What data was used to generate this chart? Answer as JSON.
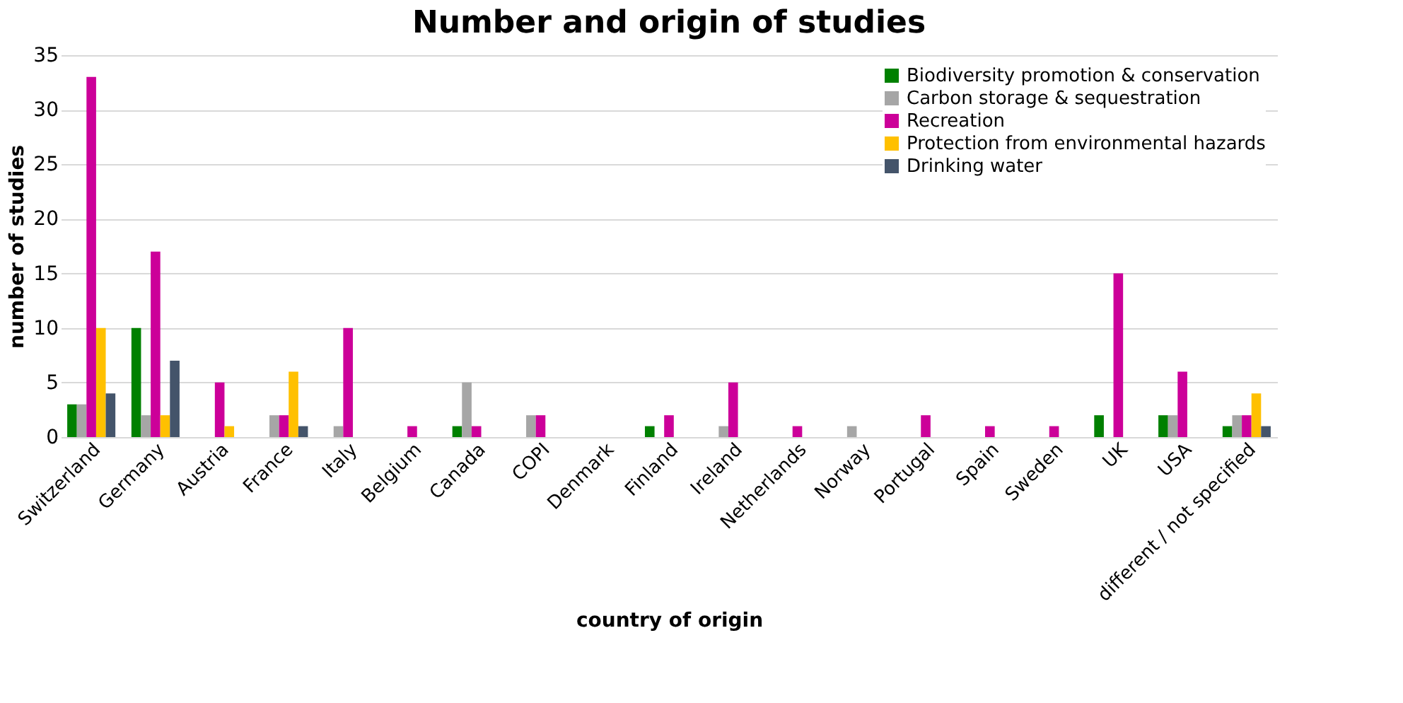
{
  "chart_data": {
    "type": "bar",
    "title": "Number and origin of studies",
    "xlabel": "country of origin",
    "ylabel": "number of studies",
    "categories": [
      "Switzerland",
      "Germany",
      "Austria",
      "France",
      "Italy",
      "Belgium",
      "Canada",
      "COPI",
      "Denmark",
      "Finland",
      "Ireland",
      "Netherlands",
      "Norway",
      "Portugal",
      "Spain",
      "Sweden",
      "UK",
      "USA",
      "different / not specified"
    ],
    "series": [
      {
        "name": "Biodiversity promotion & conservation",
        "color": "#008000",
        "values": [
          3,
          10,
          0,
          0,
          0,
          0,
          1,
          0,
          0,
          1,
          0,
          0,
          0,
          0,
          0,
          0,
          2,
          2,
          1
        ]
      },
      {
        "name": "Carbon storage & sequestration",
        "color": "#a6a6a6",
        "values": [
          3,
          2,
          0,
          2,
          1,
          0,
          5,
          2,
          0,
          0,
          1,
          0,
          1,
          0,
          0,
          0,
          0,
          2,
          2
        ]
      },
      {
        "name": "Recreation",
        "color": "#cc0099",
        "values": [
          33,
          17,
          5,
          2,
          10,
          1,
          1,
          2,
          0,
          2,
          5,
          1,
          0,
          2,
          1,
          1,
          15,
          6,
          2
        ]
      },
      {
        "name": "Protection from environmental hazards",
        "color": "#ffc000",
        "values": [
          10,
          2,
          1,
          6,
          0,
          0,
          0,
          0,
          0,
          0,
          0,
          0,
          0,
          0,
          0,
          0,
          0,
          0,
          4
        ]
      },
      {
        "name": "Drinking water",
        "color": "#44546a",
        "values": [
          4,
          7,
          0,
          1,
          0,
          0,
          0,
          0,
          0,
          0,
          0,
          0,
          0,
          0,
          0,
          0,
          0,
          0,
          1
        ]
      }
    ],
    "ylim": [
      0,
      35
    ],
    "yticks": [
      0,
      5,
      10,
      15,
      20,
      25,
      30,
      35
    ],
    "grid": "y",
    "legend": "top right"
  }
}
